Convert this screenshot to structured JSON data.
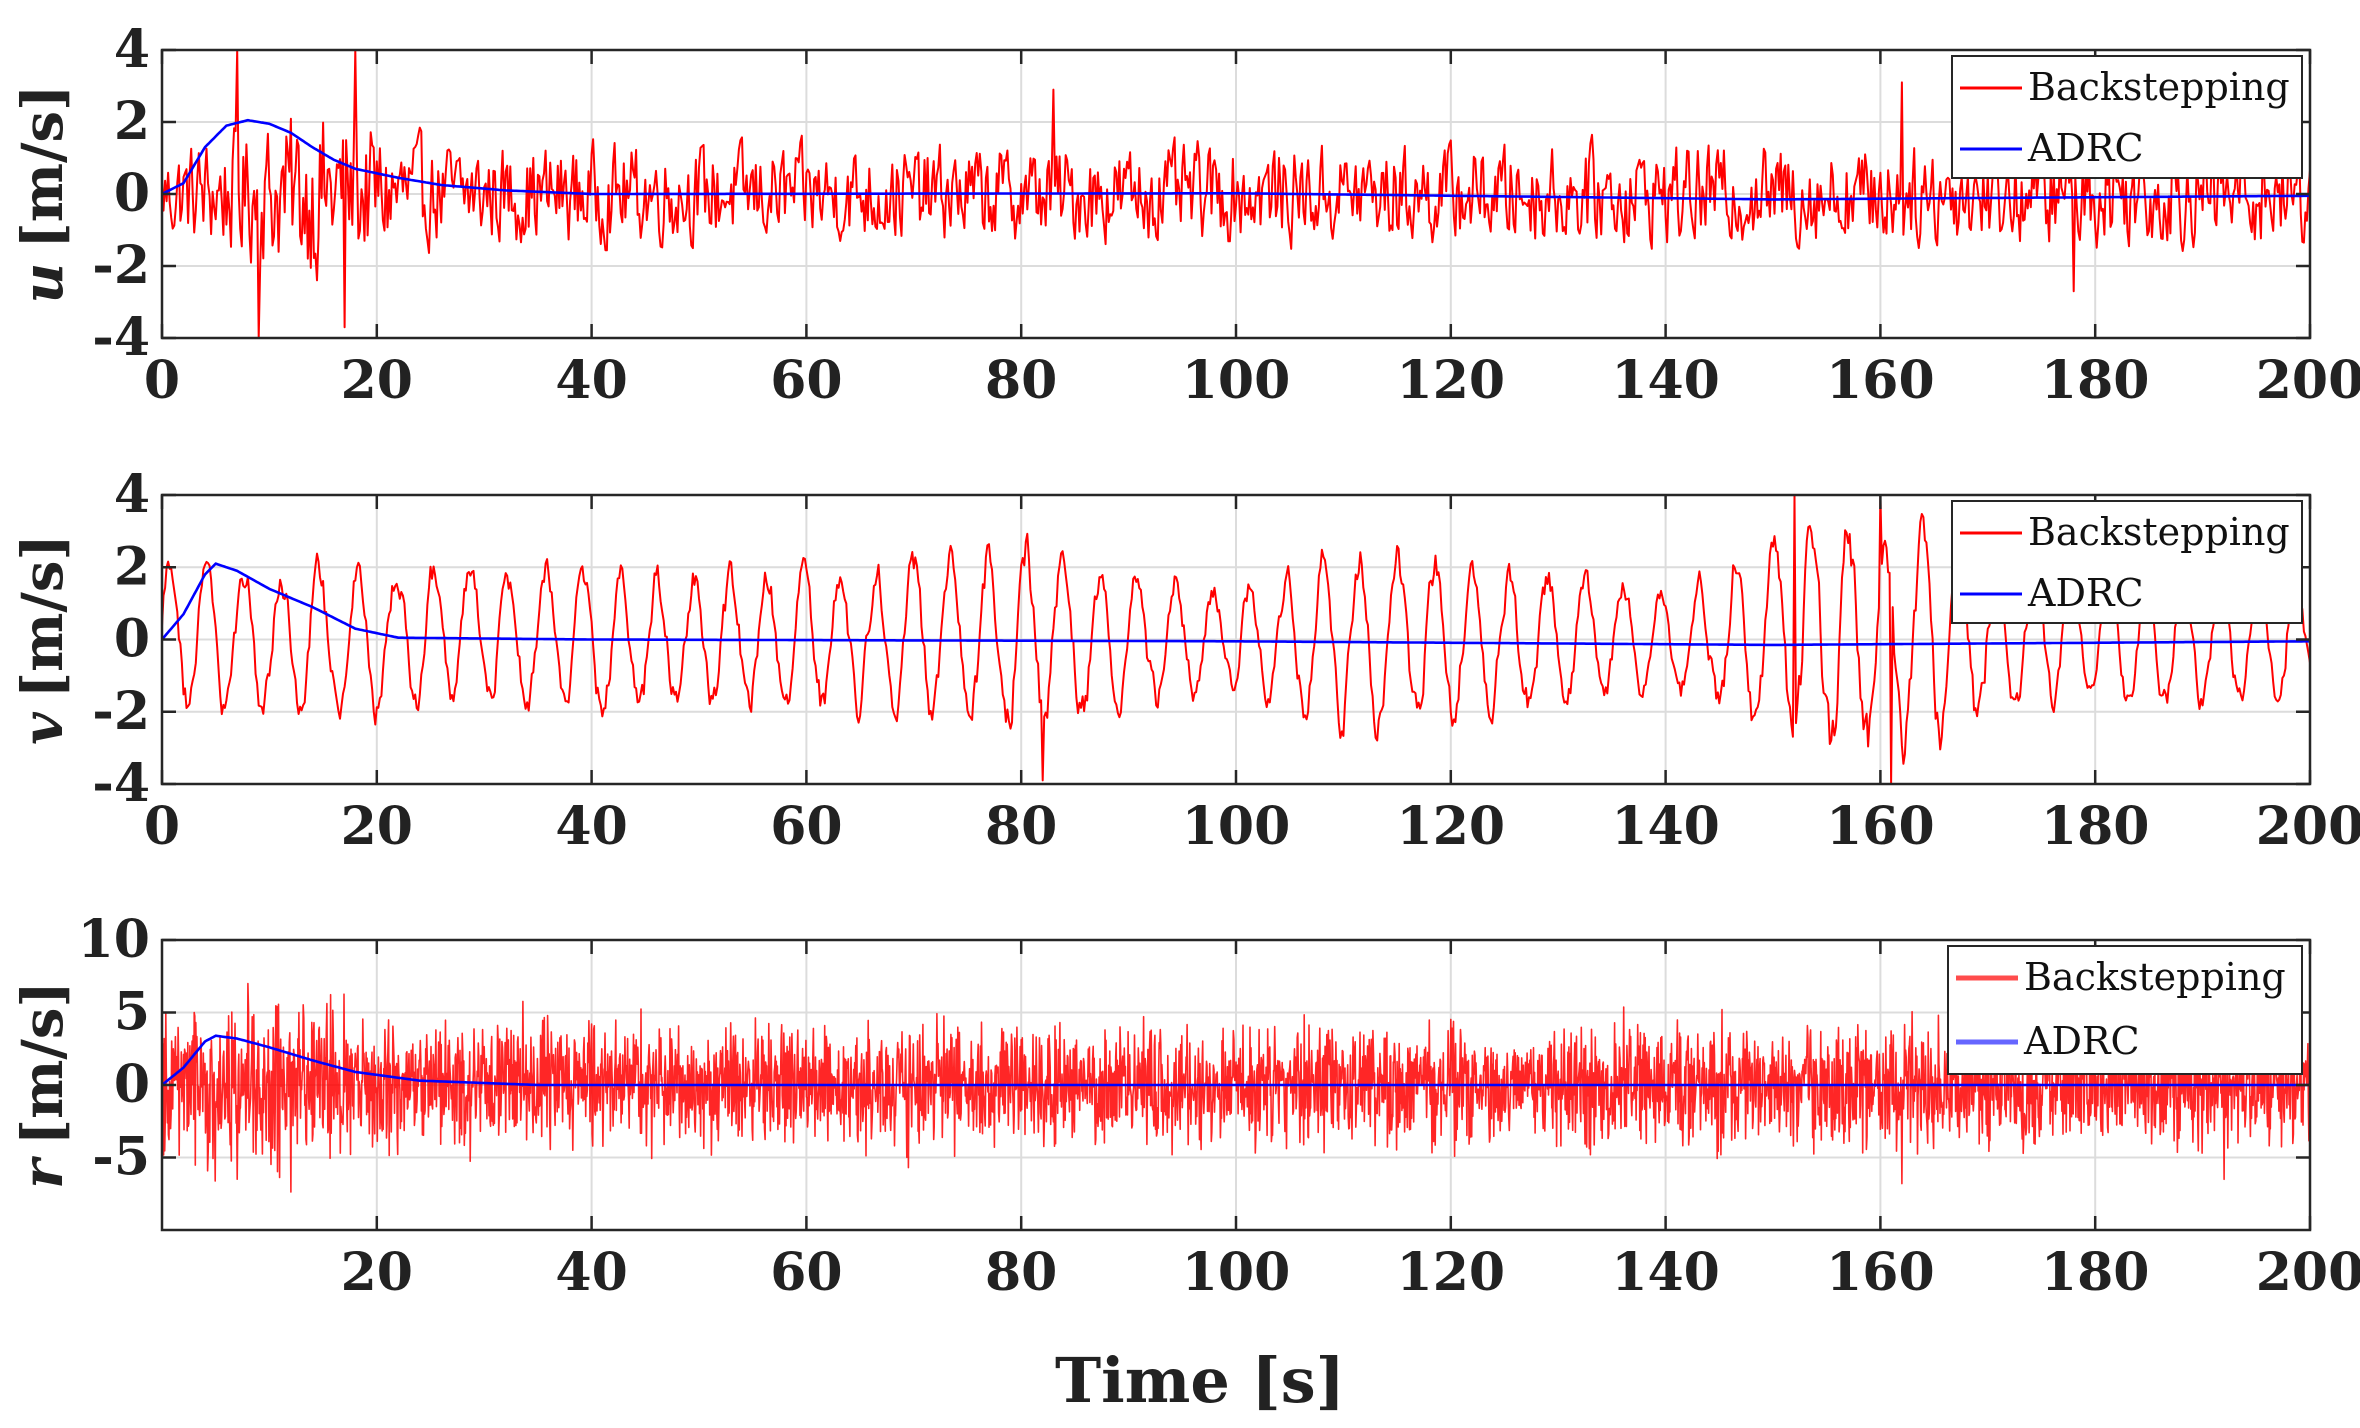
{
  "figure": {
    "xlabel": "Time [s]",
    "colors": {
      "backstepping": "#ff0000",
      "adrc": "#0000ff",
      "adrc_panel3": "#6666ff",
      "grid": "#dcdcdc",
      "axis": "#262626"
    }
  },
  "chart_data": [
    {
      "type": "line",
      "name": "u",
      "ylabel_symbol": "u",
      "ylabel_unit": "[m/s]",
      "xlim": [
        0,
        200
      ],
      "ylim": [
        -4,
        4
      ],
      "xticks": [
        0,
        20,
        40,
        60,
        80,
        100,
        120,
        140,
        160,
        180,
        200
      ],
      "xtick_labels": [
        "0",
        "20",
        "40",
        "60",
        "80",
        "100",
        "120",
        "140",
        "160",
        "180",
        "200"
      ],
      "yticks": [
        -4,
        -2,
        0,
        2,
        4
      ],
      "ytick_labels": [
        "-4",
        "-2",
        "0",
        "2",
        "4"
      ],
      "legend": {
        "position": "top-right",
        "entries": [
          "Backstepping",
          "ADRC"
        ]
      },
      "series": [
        {
          "name": "Backstepping",
          "style": "noise",
          "envelope": [
            [
              0,
              1.4
            ],
            [
              15,
              2.8
            ],
            [
              25,
              1.6
            ],
            [
              60,
              1.5
            ],
            [
              200,
              1.6
            ]
          ],
          "peaks": [
            [
              7,
              4.0
            ],
            [
              9,
              -4.0
            ],
            [
              17,
              -3.7
            ],
            [
              18,
              4.0
            ],
            [
              83,
              2.9
            ],
            [
              162,
              3.1
            ],
            [
              178,
              -2.7
            ]
          ]
        },
        {
          "name": "ADRC",
          "style": "smooth",
          "points": [
            [
              0,
              0
            ],
            [
              2,
              0.3
            ],
            [
              4,
              1.3
            ],
            [
              6,
              1.9
            ],
            [
              8,
              2.05
            ],
            [
              10,
              1.95
            ],
            [
              12,
              1.7
            ],
            [
              14,
              1.3
            ],
            [
              16,
              0.95
            ],
            [
              18,
              0.7
            ],
            [
              22,
              0.45
            ],
            [
              26,
              0.25
            ],
            [
              32,
              0.1
            ],
            [
              40,
              0.0
            ],
            [
              100,
              0.02
            ],
            [
              150,
              -0.15
            ],
            [
              200,
              -0.05
            ]
          ]
        }
      ]
    },
    {
      "type": "line",
      "name": "v",
      "ylabel_symbol": "v",
      "ylabel_unit": "[m/s]",
      "xlim": [
        0,
        200
      ],
      "ylim": [
        -4,
        4
      ],
      "xticks": [
        0,
        20,
        40,
        60,
        80,
        100,
        120,
        140,
        160,
        180,
        200
      ],
      "xtick_labels": [
        "0",
        "20",
        "40",
        "60",
        "80",
        "100",
        "120",
        "140",
        "160",
        "180",
        "200"
      ],
      "yticks": [
        -4,
        -2,
        0,
        2,
        4
      ],
      "ytick_labels": [
        "-4",
        "-2",
        "0",
        "2",
        "4"
      ],
      "legend": {
        "position": "top-right",
        "entries": [
          "Backstepping",
          "ADRC"
        ]
      },
      "series": [
        {
          "name": "Backstepping",
          "style": "oscillation",
          "envelope": [
            [
              0,
              2.3
            ],
            [
              20,
              2.4
            ],
            [
              60,
              2.2
            ],
            [
              80,
              3.0
            ],
            [
              100,
              1.6
            ],
            [
              110,
              3.0
            ],
            [
              140,
              1.6
            ],
            [
              152,
              3.6
            ],
            [
              162,
              3.8
            ],
            [
              175,
              2.0
            ],
            [
              200,
              2.0
            ]
          ],
          "peaks": [
            [
              82,
              -3.9
            ],
            [
              152,
              4.0
            ],
            [
              160,
              4.0
            ],
            [
              161,
              -4.0
            ]
          ]
        },
        {
          "name": "ADRC",
          "style": "smooth",
          "points": [
            [
              0,
              0
            ],
            [
              2,
              0.7
            ],
            [
              4,
              1.8
            ],
            [
              5,
              2.1
            ],
            [
              7,
              1.9
            ],
            [
              10,
              1.4
            ],
            [
              14,
              0.9
            ],
            [
              18,
              0.3
            ],
            [
              22,
              0.05
            ],
            [
              40,
              0.0
            ],
            [
              100,
              -0.05
            ],
            [
              150,
              -0.15
            ],
            [
              200,
              -0.05
            ]
          ]
        }
      ]
    },
    {
      "type": "line",
      "name": "r",
      "ylabel_symbol": "r",
      "ylabel_unit": "[m/s]",
      "xlim": [
        0,
        200
      ],
      "ylim": [
        -10,
        10
      ],
      "xticks": [
        20,
        40,
        60,
        80,
        100,
        120,
        140,
        160,
        180,
        200
      ],
      "xtick_labels": [
        "20",
        "40",
        "60",
        "80",
        "100",
        "120",
        "140",
        "160",
        "180",
        "200"
      ],
      "yticks": [
        -5,
        0,
        5,
        10
      ],
      "ytick_labels": [
        "-5",
        "0",
        "5",
        "10"
      ],
      "legend": {
        "position": "top-right",
        "entries": [
          "Backstepping",
          "ADRC"
        ]
      },
      "series": [
        {
          "name": "Backstepping",
          "style": "dense-noise",
          "envelope": [
            [
              0,
              4.0
            ],
            [
              10,
              4.2
            ],
            [
              25,
              3.2
            ],
            [
              200,
              3.2
            ]
          ],
          "peaks": [
            [
              8,
              7.0
            ],
            [
              162,
              -6.8
            ],
            [
              192,
              -6.5
            ]
          ]
        },
        {
          "name": "ADRC",
          "style": "smooth",
          "points": [
            [
              0,
              0
            ],
            [
              2,
              1.2
            ],
            [
              4,
              3.0
            ],
            [
              5,
              3.4
            ],
            [
              7,
              3.2
            ],
            [
              10,
              2.6
            ],
            [
              14,
              1.7
            ],
            [
              18,
              0.9
            ],
            [
              24,
              0.3
            ],
            [
              35,
              0.0
            ],
            [
              200,
              0.0
            ]
          ]
        }
      ]
    }
  ]
}
